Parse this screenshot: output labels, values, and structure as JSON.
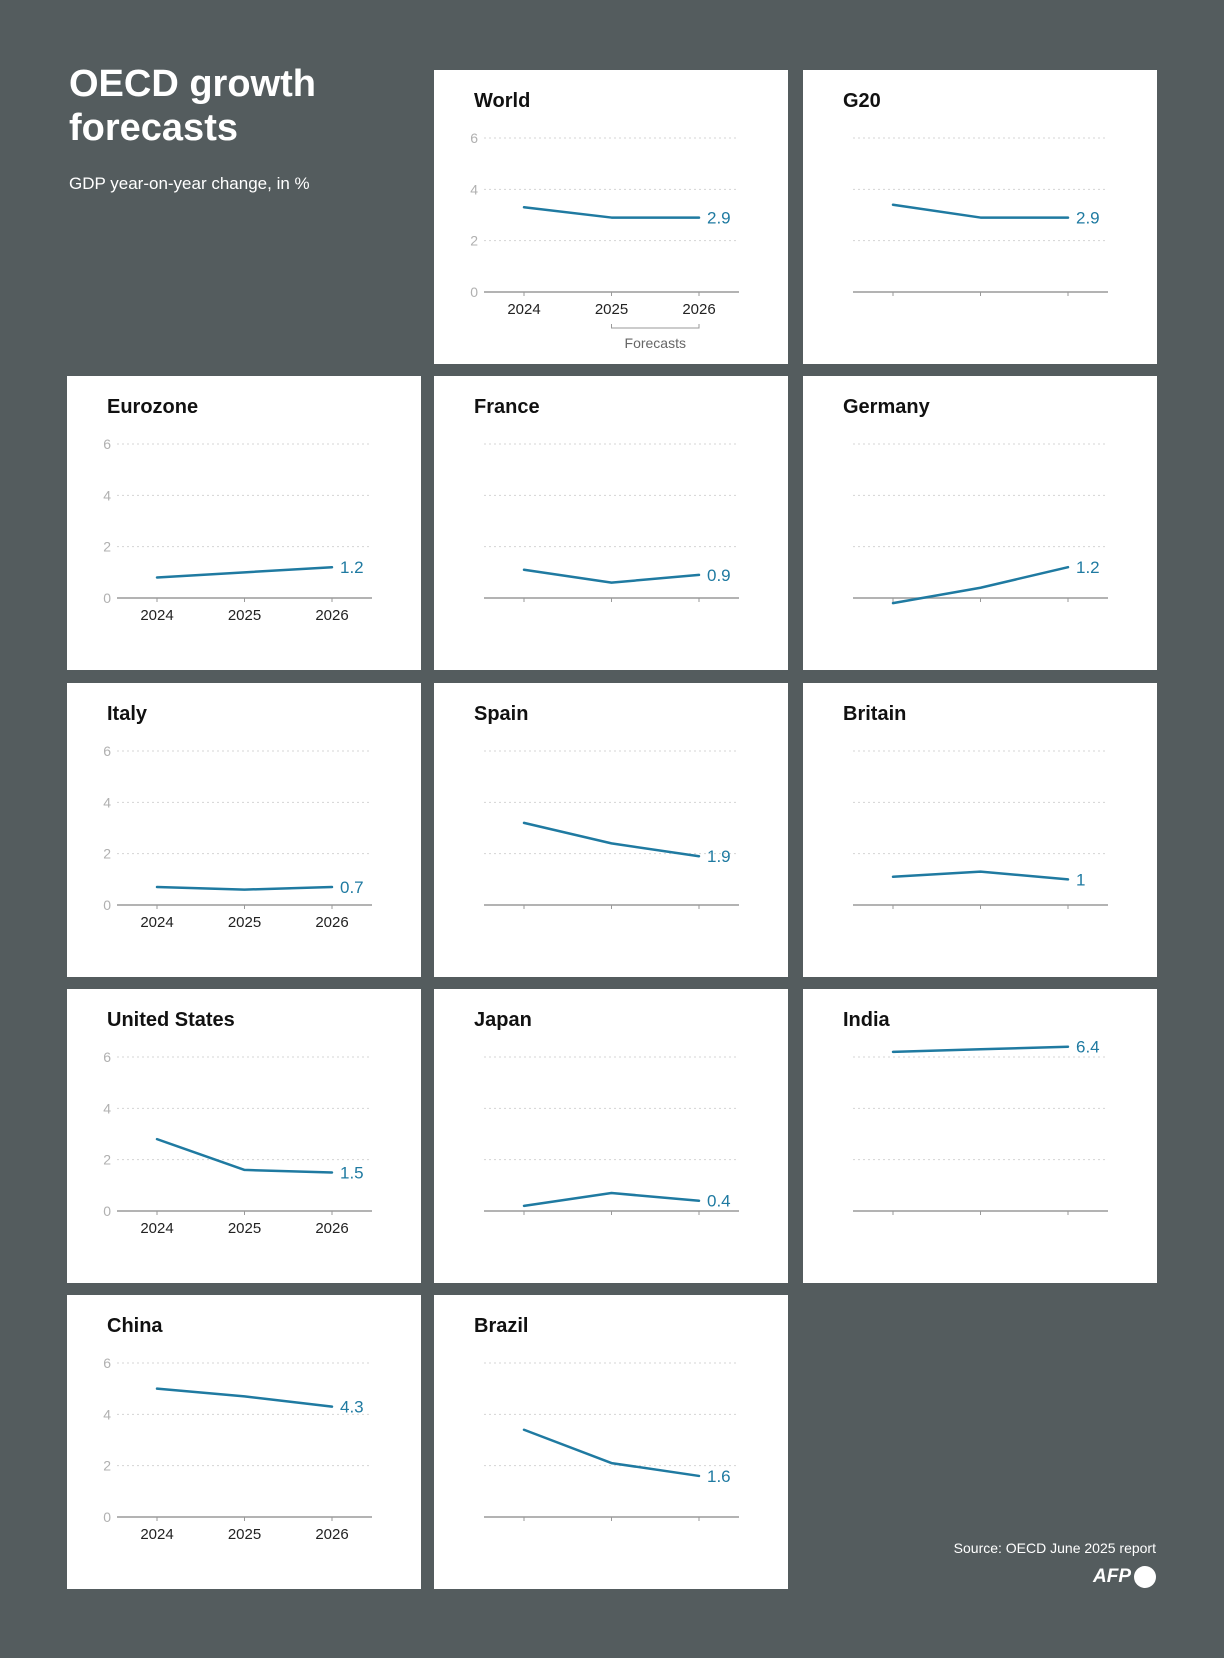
{
  "header": {
    "title": "OECD growth forecasts",
    "subtitle": "GDP year-on-year change, in %"
  },
  "footer": {
    "source": "Source: OECD June 2025 report",
    "logo": "AFP"
  },
  "colors": {
    "background": "#545c5e",
    "line": "#1f7aa1",
    "grid": "#d4d4d4",
    "axis": "#9a9a9a",
    "tick_label": "#b0b0b0"
  },
  "chart_data": [
    {
      "type": "line",
      "title": "World",
      "x": [
        2024,
        2025,
        2026
      ],
      "values": [
        3.3,
        2.9,
        2.9
      ],
      "end_label": "2.9",
      "ylim": [
        0,
        6
      ],
      "yticks": [
        0,
        2,
        4,
        6
      ],
      "show_y_labels": true,
      "show_x_labels": true,
      "x_annotation": "Forecasts"
    },
    {
      "type": "line",
      "title": "G20",
      "x": [
        2024,
        2025,
        2026
      ],
      "values": [
        3.4,
        2.9,
        2.9
      ],
      "end_label": "2.9",
      "ylim": [
        0,
        6
      ],
      "yticks": [
        0,
        2,
        4,
        6
      ],
      "show_y_labels": false,
      "show_x_labels": false
    },
    {
      "type": "line",
      "title": "Eurozone",
      "x": [
        2024,
        2025,
        2026
      ],
      "values": [
        0.8,
        1.0,
        1.2
      ],
      "end_label": "1.2",
      "ylim": [
        0,
        6
      ],
      "yticks": [
        0,
        2,
        4,
        6
      ],
      "show_y_labels": true,
      "show_x_labels": true
    },
    {
      "type": "line",
      "title": "France",
      "x": [
        2024,
        2025,
        2026
      ],
      "values": [
        1.1,
        0.6,
        0.9
      ],
      "end_label": "0.9",
      "ylim": [
        0,
        6
      ],
      "yticks": [
        0,
        2,
        4,
        6
      ],
      "show_y_labels": false,
      "show_x_labels": false
    },
    {
      "type": "line",
      "title": "Germany",
      "x": [
        2024,
        2025,
        2026
      ],
      "values": [
        -0.2,
        0.4,
        1.2
      ],
      "end_label": "1.2",
      "ylim": [
        0,
        6
      ],
      "yticks": [
        0,
        2,
        4,
        6
      ],
      "show_y_labels": false,
      "show_x_labels": false
    },
    {
      "type": "line",
      "title": "Italy",
      "x": [
        2024,
        2025,
        2026
      ],
      "values": [
        0.7,
        0.6,
        0.7
      ],
      "end_label": "0.7",
      "ylim": [
        0,
        6
      ],
      "yticks": [
        0,
        2,
        4,
        6
      ],
      "show_y_labels": true,
      "show_x_labels": true
    },
    {
      "type": "line",
      "title": "Spain",
      "x": [
        2024,
        2025,
        2026
      ],
      "values": [
        3.2,
        2.4,
        1.9
      ],
      "end_label": "1.9",
      "ylim": [
        0,
        6
      ],
      "yticks": [
        0,
        2,
        4,
        6
      ],
      "show_y_labels": false,
      "show_x_labels": false
    },
    {
      "type": "line",
      "title": "Britain",
      "x": [
        2024,
        2025,
        2026
      ],
      "values": [
        1.1,
        1.3,
        1.0
      ],
      "end_label": "1",
      "ylim": [
        0,
        6
      ],
      "yticks": [
        0,
        2,
        4,
        6
      ],
      "show_y_labels": false,
      "show_x_labels": false
    },
    {
      "type": "line",
      "title": "United States",
      "x": [
        2024,
        2025,
        2026
      ],
      "values": [
        2.8,
        1.6,
        1.5
      ],
      "end_label": "1.5",
      "ylim": [
        0,
        6
      ],
      "yticks": [
        0,
        2,
        4,
        6
      ],
      "show_y_labels": true,
      "show_x_labels": true
    },
    {
      "type": "line",
      "title": "Japan",
      "x": [
        2024,
        2025,
        2026
      ],
      "values": [
        0.2,
        0.7,
        0.4
      ],
      "end_label": "0.4",
      "ylim": [
        0,
        6
      ],
      "yticks": [
        0,
        2,
        4,
        6
      ],
      "show_y_labels": false,
      "show_x_labels": false
    },
    {
      "type": "line",
      "title": "India",
      "x": [
        2024,
        2025,
        2026
      ],
      "values": [
        6.2,
        6.3,
        6.4
      ],
      "end_label": "6.4",
      "ylim": [
        0,
        6
      ],
      "yticks": [
        0,
        2,
        4,
        6
      ],
      "show_y_labels": false,
      "show_x_labels": false
    },
    {
      "type": "line",
      "title": "China",
      "x": [
        2024,
        2025,
        2026
      ],
      "values": [
        5.0,
        4.7,
        4.3
      ],
      "end_label": "4.3",
      "ylim": [
        0,
        6
      ],
      "yticks": [
        0,
        2,
        4,
        6
      ],
      "show_y_labels": true,
      "show_x_labels": true
    },
    {
      "type": "line",
      "title": "Brazil",
      "x": [
        2024,
        2025,
        2026
      ],
      "values": [
        3.4,
        2.1,
        1.6
      ],
      "end_label": "1.6",
      "ylim": [
        0,
        6
      ],
      "yticks": [
        0,
        2,
        4,
        6
      ],
      "show_y_labels": false,
      "show_x_labels": false
    }
  ]
}
